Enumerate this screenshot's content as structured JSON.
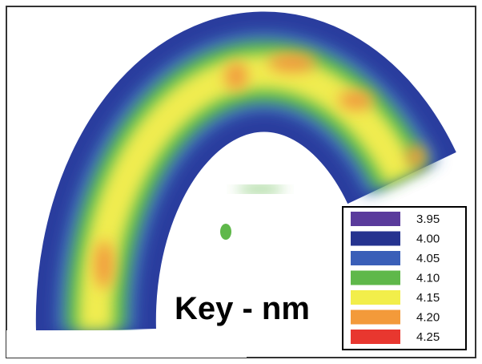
{
  "key": {
    "title": "Key - nm",
    "entries": [
      {
        "label": "3.95",
        "color": "#5a3b9c"
      },
      {
        "label": "4.00",
        "color": "#25338f"
      },
      {
        "label": "4.05",
        "color": "#3a5fb8"
      },
      {
        "label": "4.10",
        "color": "#5fb84a"
      },
      {
        "label": "4.15",
        "color": "#f2ee4a"
      },
      {
        "label": "4.20",
        "color": "#f39a3a"
      },
      {
        "label": "4.25",
        "color": "#e8372f"
      }
    ]
  }
}
